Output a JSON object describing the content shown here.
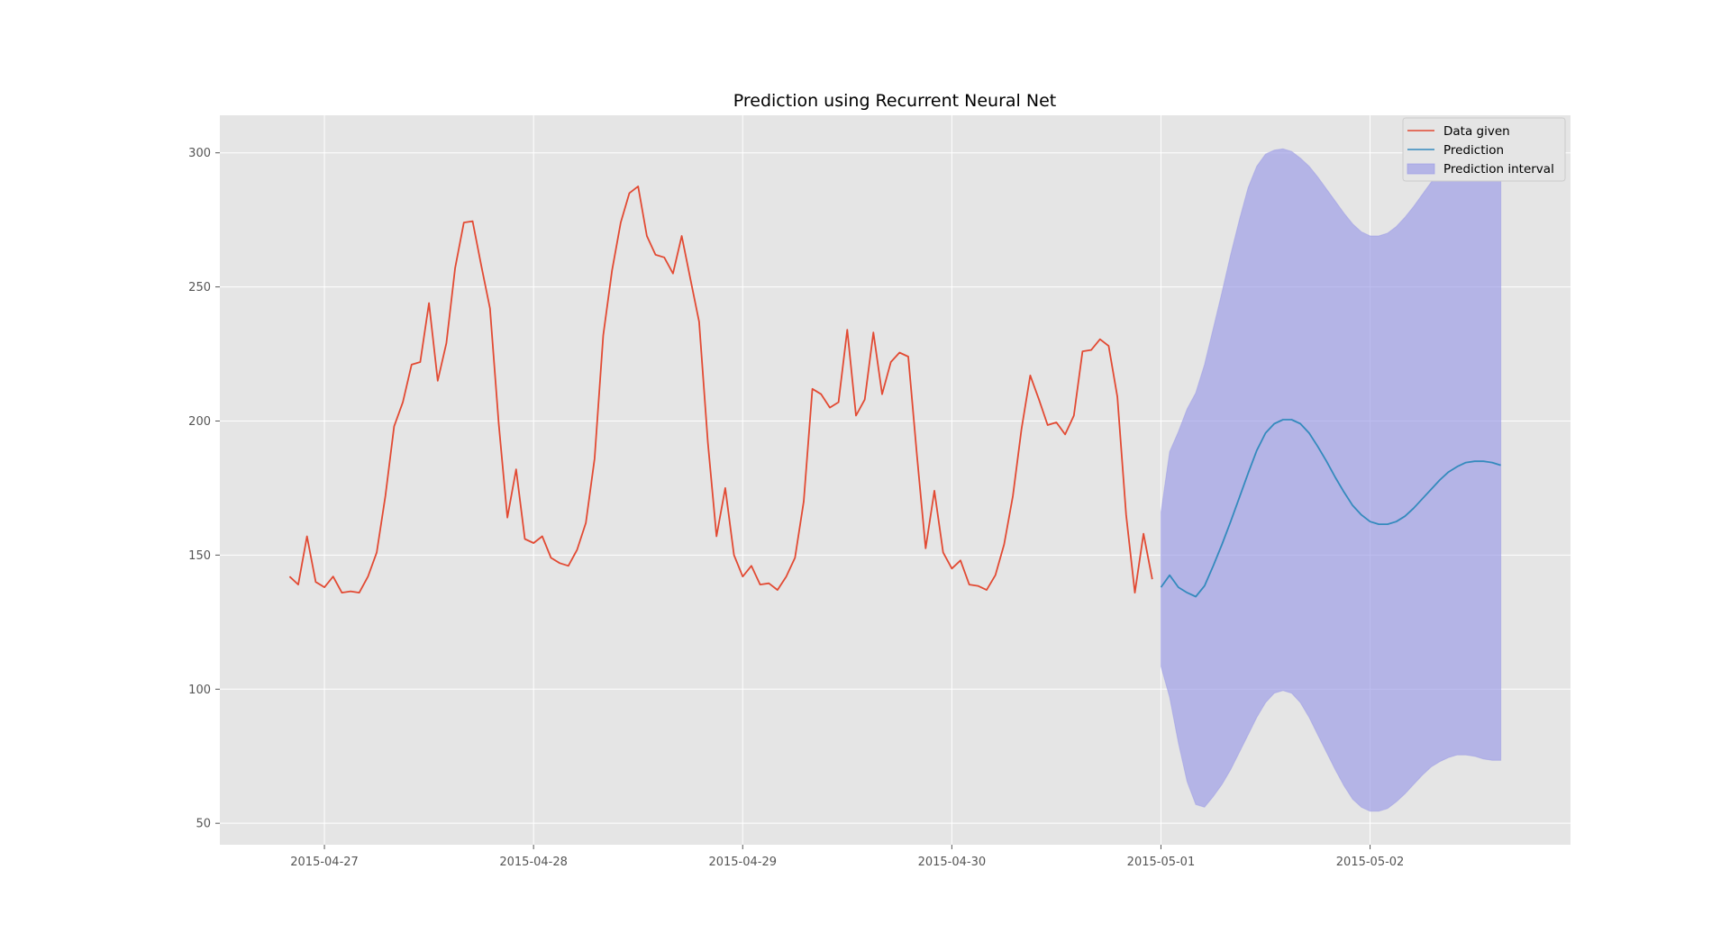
{
  "chart_data": {
    "type": "line",
    "title": "Prediction using Recurrent Neural Net",
    "xlabel": "",
    "ylabel": "",
    "x_axis_kind": "datetime",
    "xlim": [
      "2015-04-26T12:00",
      "2015-05-02T23:00"
    ],
    "ylim": [
      42,
      314
    ],
    "x_ticks": [
      "2015-04-27",
      "2015-04-28",
      "2015-04-29",
      "2015-04-30",
      "2015-05-01",
      "2015-05-02"
    ],
    "y_ticks": [
      50,
      100,
      150,
      200,
      250,
      300
    ],
    "grid": true,
    "legend_position": "top-right",
    "legend": [
      "Data given",
      "Prediction",
      "Prediction interval"
    ],
    "colors": {
      "data_given": "#E24A33",
      "prediction": "#348ABD",
      "interval": "#9A9AE6",
      "axes_bg": "#E5E5E5",
      "grid": "#FFFFFF"
    },
    "series": [
      {
        "name": "Data given",
        "start": "2015-04-26T20:00",
        "step_hours": 1,
        "values": [
          142,
          139,
          157,
          140,
          138,
          142,
          136,
          136.5,
          136,
          142,
          151,
          172,
          198,
          207,
          221,
          222,
          244,
          215,
          229,
          257,
          274,
          274.5,
          258,
          242,
          199,
          164,
          182,
          156,
          154.5,
          157,
          149,
          147,
          146,
          152,
          162,
          186,
          232,
          256,
          274,
          285,
          287.5,
          269,
          262,
          261,
          255,
          269,
          253,
          237,
          192,
          157,
          175,
          150,
          142,
          146,
          139,
          139.5,
          137,
          142,
          149,
          170,
          212,
          210,
          205,
          207,
          234,
          202,
          208,
          233,
          210,
          222,
          225.5,
          224,
          187,
          152.5,
          174,
          151,
          145,
          148,
          139,
          138.5,
          137,
          142.5,
          154,
          172,
          197,
          217,
          208,
          198.5,
          199.5,
          195,
          202,
          226,
          226.5,
          230.5,
          228,
          209,
          165,
          136,
          158,
          141
        ]
      },
      {
        "name": "Prediction",
        "start": "2015-05-01T00:00",
        "step_hours": 1,
        "values": [
          138,
          142.5,
          138,
          136,
          134.5,
          138.5,
          146,
          154,
          162.5,
          171.5,
          180.5,
          189,
          195.5,
          199,
          200.5,
          200.5,
          199,
          195.5,
          190.5,
          185,
          179,
          173.5,
          168.5,
          165,
          162.5,
          161.5,
          161.5,
          162.5,
          164.5,
          167.5,
          171,
          174.5,
          178,
          181,
          183,
          184.5,
          185,
          185,
          184.5,
          183.5
        ]
      },
      {
        "name": "Prediction interval",
        "start": "2015-05-01T00:00",
        "step_hours": 1,
        "upper": [
          166,
          188.5,
          196,
          204.5,
          210.5,
          221,
          234.5,
          248,
          262,
          275,
          287,
          295,
          299.5,
          301,
          301.5,
          300.5,
          298,
          295,
          291,
          286.5,
          282,
          277.5,
          273.5,
          270.5,
          269,
          269,
          270,
          272.5,
          276,
          280,
          284.5,
          289,
          293,
          297,
          300,
          302,
          303,
          303,
          302.5,
          301.5
        ],
        "lower": [
          108.5,
          97,
          80,
          65.5,
          57,
          56,
          60,
          64.5,
          70,
          76.5,
          83,
          89.5,
          95,
          98.5,
          99.5,
          98.5,
          95,
          89.5,
          83,
          76.5,
          70,
          64,
          59,
          56,
          54.5,
          54.5,
          55.5,
          58,
          61,
          64.5,
          68,
          71,
          73,
          74.5,
          75.5,
          75.5,
          75,
          74,
          73.5,
          73.5
        ]
      }
    ]
  }
}
